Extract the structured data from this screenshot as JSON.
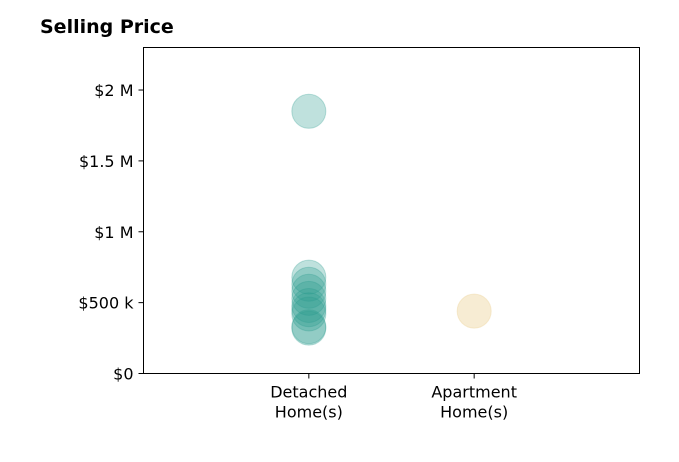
{
  "chart_data": {
    "type": "scatter",
    "title": "Selling Price",
    "xlabel": "",
    "ylabel": "",
    "categories": [
      "Detached\nHome(s)",
      "Apartment\nHome(s)"
    ],
    "xlim": [
      -1,
      2
    ],
    "ylim": [
      0,
      2300000
    ],
    "yticks": [
      {
        "value": 0,
        "label": "$0"
      },
      {
        "value": 500000,
        "label": "$500 k"
      },
      {
        "value": 1000000,
        "label": "$1 M"
      },
      {
        "value": 1500000,
        "label": "$1.5 M"
      },
      {
        "value": 2000000,
        "label": "$2 M"
      }
    ],
    "grid": false,
    "series": [
      {
        "category": "Detached\nHome(s)",
        "color": "#2a9d8f",
        "values": [
          1850000,
          680000,
          630000,
          580000,
          530000,
          480000,
          450000,
          420000,
          330000,
          320000
        ]
      },
      {
        "category": "Apartment\nHome(s)",
        "color": "#f0d9a8",
        "values": [
          440000
        ]
      }
    ]
  }
}
